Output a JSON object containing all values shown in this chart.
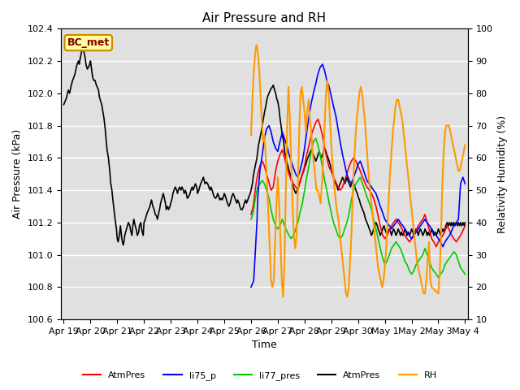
{
  "title": "Air Pressure and RH",
  "xlabel": "Time",
  "ylabel_left": "Air Pressure (kPa)",
  "ylabel_right": "Relativity Humidity (%)",
  "ylim_left": [
    100.6,
    102.4
  ],
  "ylim_right": [
    10,
    100
  ],
  "yticks_left": [
    100.6,
    100.8,
    101.0,
    101.2,
    101.4,
    101.6,
    101.8,
    102.0,
    102.2,
    102.4
  ],
  "yticks_right": [
    10,
    20,
    30,
    40,
    50,
    60,
    70,
    80,
    90,
    100
  ],
  "plot_bg_color": "#e0e0e0",
  "grid_color": "#ffffff",
  "annotation_text": "BC_met",
  "annotation_bg": "#ffffa0",
  "annotation_border": "#cc8800",
  "annotation_text_color": "#880000",
  "legend_items": [
    {
      "label": "AtmPres",
      "color": "#ff0000",
      "lw": 1.5
    },
    {
      "label": "li75_p",
      "color": "#0000ff",
      "lw": 1.5
    },
    {
      "label": "li77_pres",
      "color": "#00cc00",
      "lw": 1.5
    },
    {
      "label": "AtmPres",
      "color": "#000000",
      "lw": 1.5
    },
    {
      "label": "RH",
      "color": "#ff9900",
      "lw": 1.5
    }
  ],
  "xtick_labels": [
    "Apr 19",
    "Apr 20",
    "Apr 21",
    "Apr 22",
    "Apr 23",
    "Apr 24",
    "Apr 25",
    "Apr 26",
    "Apr 27",
    "Apr 28",
    "Apr 29",
    "Apr 30",
    "May 1",
    "May 2",
    "May 3",
    "May 4"
  ],
  "xtick_positions": [
    0,
    1,
    2,
    3,
    4,
    5,
    6,
    7,
    8,
    9,
    10,
    11,
    12,
    13,
    14,
    15
  ],
  "xlim": [
    -0.1,
    15.1
  ],
  "black_line": [
    0.0,
    101.93,
    0.05,
    101.95,
    0.1,
    101.97,
    0.17,
    102.02,
    0.22,
    102.0,
    0.28,
    102.05,
    0.33,
    102.08,
    0.38,
    102.1,
    0.42,
    102.12,
    0.47,
    102.16,
    0.5,
    102.18,
    0.55,
    102.2,
    0.58,
    102.18,
    0.62,
    102.22,
    0.67,
    102.26,
    0.72,
    102.28,
    0.75,
    102.26,
    0.8,
    102.22,
    0.83,
    102.18,
    0.88,
    102.15,
    0.92,
    102.16,
    0.97,
    102.18,
    1.0,
    102.2,
    1.05,
    102.14,
    1.08,
    102.1,
    1.12,
    102.08,
    1.17,
    102.08,
    1.22,
    102.05,
    1.25,
    102.04,
    1.3,
    102.02,
    1.33,
    101.98,
    1.38,
    101.95,
    1.42,
    101.93,
    1.47,
    101.88,
    1.5,
    101.85,
    1.55,
    101.78,
    1.58,
    101.72,
    1.62,
    101.65,
    1.67,
    101.6,
    1.72,
    101.52,
    1.75,
    101.45,
    1.8,
    101.4,
    1.83,
    101.35,
    1.88,
    101.28,
    1.92,
    101.22,
    1.97,
    101.16,
    2.0,
    101.1,
    2.03,
    101.08,
    2.08,
    101.12,
    2.12,
    101.18,
    2.17,
    101.1,
    2.22,
    101.06,
    2.25,
    101.08,
    2.28,
    101.12,
    2.33,
    101.15,
    2.38,
    101.18,
    2.42,
    101.2,
    2.47,
    101.18,
    2.5,
    101.15,
    2.55,
    101.12,
    2.58,
    101.18,
    2.62,
    101.22,
    2.67,
    101.18,
    2.72,
    101.15,
    2.75,
    101.12,
    2.8,
    101.14,
    2.83,
    101.18,
    2.88,
    101.2,
    2.92,
    101.15,
    2.97,
    101.12,
    3.0,
    101.2,
    3.05,
    101.22,
    3.08,
    101.24,
    3.12,
    101.26,
    3.17,
    101.28,
    3.22,
    101.3,
    3.25,
    101.32,
    3.28,
    101.34,
    3.33,
    101.3,
    3.38,
    101.28,
    3.42,
    101.25,
    3.47,
    101.24,
    3.5,
    101.22,
    3.55,
    101.26,
    3.58,
    101.28,
    3.62,
    101.32,
    3.67,
    101.35,
    3.72,
    101.38,
    3.75,
    101.36,
    3.8,
    101.32,
    3.83,
    101.28,
    3.88,
    101.3,
    3.92,
    101.28,
    3.97,
    101.3,
    4.0,
    101.32,
    4.05,
    101.35,
    4.08,
    101.38,
    4.12,
    101.4,
    4.17,
    101.42,
    4.22,
    101.4,
    4.25,
    101.38,
    4.28,
    101.4,
    4.33,
    101.42,
    4.38,
    101.4,
    4.42,
    101.42,
    4.47,
    101.4,
    4.5,
    101.38,
    4.55,
    101.4,
    4.58,
    101.38,
    4.62,
    101.35,
    4.67,
    101.36,
    4.72,
    101.38,
    4.75,
    101.4,
    4.8,
    101.42,
    4.83,
    101.4,
    4.88,
    101.42,
    4.92,
    101.44,
    4.97,
    101.42,
    5.0,
    101.38,
    5.05,
    101.4,
    5.08,
    101.42,
    5.12,
    101.44,
    5.17,
    101.46,
    5.22,
    101.48,
    5.25,
    101.46,
    5.28,
    101.44,
    5.33,
    101.45,
    5.38,
    101.44,
    5.42,
    101.42,
    5.47,
    101.4,
    5.5,
    101.42,
    5.55,
    101.4,
    5.58,
    101.38,
    5.62,
    101.36,
    5.67,
    101.35,
    5.72,
    101.36,
    5.75,
    101.38,
    5.8,
    101.36,
    5.83,
    101.34,
    5.88,
    101.35,
    5.92,
    101.34,
    5.97,
    101.36,
    6.0,
    101.38,
    6.05,
    101.36,
    6.08,
    101.34,
    6.12,
    101.32,
    6.17,
    101.3,
    6.22,
    101.32,
    6.25,
    101.34,
    6.28,
    101.36,
    6.33,
    101.38,
    6.38,
    101.36,
    6.42,
    101.34,
    6.47,
    101.32,
    6.5,
    101.34,
    6.55,
    101.32,
    6.58,
    101.3,
    6.62,
    101.28,
    6.67,
    101.28,
    6.72,
    101.3,
    6.75,
    101.32,
    6.8,
    101.34,
    6.83,
    101.32,
    6.88,
    101.34,
    6.92,
    101.36,
    6.97,
    101.38,
    7.0,
    101.4,
    7.05,
    101.44,
    7.08,
    101.48,
    7.12,
    101.52,
    7.17,
    101.56,
    7.22,
    101.6,
    7.25,
    101.64,
    7.28,
    101.68,
    7.33,
    101.72,
    7.38,
    101.76,
    7.42,
    101.8,
    7.47,
    101.85,
    7.5,
    101.88,
    7.55,
    101.92,
    7.58,
    101.95,
    7.62,
    101.98,
    7.67,
    102.0,
    7.72,
    102.02,
    7.75,
    102.03,
    7.8,
    102.04,
    7.83,
    102.05,
    7.88,
    102.02,
    7.92,
    102.0,
    7.97,
    101.96,
    8.0,
    101.95,
    8.05,
    101.9,
    8.08,
    101.85,
    8.12,
    101.8,
    8.17,
    101.74,
    8.22,
    101.7,
    8.25,
    101.65,
    8.28,
    101.62,
    8.33,
    101.58,
    8.38,
    101.55,
    8.42,
    101.52,
    8.47,
    101.5,
    8.5,
    101.48,
    8.55,
    101.45,
    8.58,
    101.42,
    8.62,
    101.4,
    8.67,
    101.38,
    8.72,
    101.4,
    8.75,
    101.42,
    8.8,
    101.44,
    8.83,
    101.45,
    8.88,
    101.48,
    8.92,
    101.5,
    8.97,
    101.52,
    9.0,
    101.54,
    9.05,
    101.56,
    9.08,
    101.58,
    9.12,
    101.6,
    9.17,
    101.62,
    9.22,
    101.64,
    9.25,
    101.65,
    9.28,
    101.64,
    9.33,
    101.62,
    9.38,
    101.6,
    9.42,
    101.58,
    9.47,
    101.6,
    9.5,
    101.62,
    9.55,
    101.64,
    9.58,
    101.62,
    9.62,
    101.6,
    9.67,
    101.62,
    9.72,
    101.65,
    9.75,
    101.66,
    9.8,
    101.64,
    9.83,
    101.62,
    9.88,
    101.6,
    9.92,
    101.58,
    9.97,
    101.55,
    10.0,
    101.52,
    10.05,
    101.5,
    10.08,
    101.48,
    10.12,
    101.46,
    10.17,
    101.44,
    10.22,
    101.42,
    10.25,
    101.4,
    10.28,
    101.42,
    10.33,
    101.44,
    10.38,
    101.46,
    10.42,
    101.48,
    10.47,
    101.46,
    10.5,
    101.44,
    10.55,
    101.46,
    10.58,
    101.48,
    10.62,
    101.46,
    10.67,
    101.44,
    10.72,
    101.42,
    10.75,
    101.44,
    10.8,
    101.46,
    10.83,
    101.44,
    10.88,
    101.42,
    10.92,
    101.4,
    10.97,
    101.38,
    11.0,
    101.36,
    11.05,
    101.34,
    11.08,
    101.32,
    11.12,
    101.3,
    11.17,
    101.28,
    11.22,
    101.26,
    11.25,
    101.24,
    11.28,
    101.22,
    11.33,
    101.2,
    11.38,
    101.18,
    11.42,
    101.16,
    11.47,
    101.14,
    11.5,
    101.12,
    11.55,
    101.14,
    11.58,
    101.16,
    11.62,
    101.18,
    11.67,
    101.2,
    11.72,
    101.18,
    11.75,
    101.16,
    11.8,
    101.14,
    11.83,
    101.12,
    11.88,
    101.14,
    11.92,
    101.16,
    11.97,
    101.18,
    12.0,
    101.16,
    12.05,
    101.14,
    12.08,
    101.12,
    12.12,
    101.14,
    12.17,
    101.16,
    12.22,
    101.14,
    12.25,
    101.12,
    12.28,
    101.14,
    12.33,
    101.16,
    12.38,
    101.14,
    12.42,
    101.12,
    12.47,
    101.14,
    12.5,
    101.16,
    12.55,
    101.14,
    12.58,
    101.12,
    12.62,
    101.14,
    12.67,
    101.12,
    12.72,
    101.14,
    12.75,
    101.16,
    12.8,
    101.14,
    12.83,
    101.12,
    12.88,
    101.14,
    12.92,
    101.12,
    12.97,
    101.14,
    13.0,
    101.16,
    13.05,
    101.14,
    13.08,
    101.12,
    13.12,
    101.14,
    13.17,
    101.16,
    13.22,
    101.14,
    13.25,
    101.12,
    13.28,
    101.14,
    13.33,
    101.16,
    13.38,
    101.14,
    13.42,
    101.12,
    13.47,
    101.14,
    13.5,
    101.16,
    13.55,
    101.14,
    13.58,
    101.12,
    13.62,
    101.14,
    13.67,
    101.12,
    13.72,
    101.14,
    13.75,
    101.16,
    13.8,
    101.14,
    13.83,
    101.12,
    13.88,
    101.14,
    13.92,
    101.12,
    13.97,
    101.14,
    14.0,
    101.16,
    14.05,
    101.14,
    14.08,
    101.12,
    14.12,
    101.14,
    14.17,
    101.16,
    14.22,
    101.14,
    14.25,
    101.16,
    14.28,
    101.18,
    14.33,
    101.2,
    14.38,
    101.18,
    14.42,
    101.2,
    14.47,
    101.18,
    14.5,
    101.2,
    14.55,
    101.18,
    14.58,
    101.2,
    14.62,
    101.18,
    14.67,
    101.2,
    14.72,
    101.18,
    14.75,
    101.2,
    14.8,
    101.18,
    14.83,
    101.2,
    14.88,
    101.18,
    14.92,
    101.2,
    14.97,
    101.18,
    15.0,
    101.2
  ],
  "red_line": [
    7.0,
    101.25,
    7.08,
    101.3,
    7.17,
    101.42,
    7.25,
    101.5,
    7.33,
    101.55,
    7.42,
    101.58,
    7.5,
    101.55,
    7.58,
    101.5,
    7.67,
    101.45,
    7.75,
    101.4,
    7.83,
    101.42,
    7.92,
    101.52,
    8.0,
    101.58,
    8.08,
    101.62,
    8.17,
    101.65,
    8.25,
    101.6,
    8.33,
    101.55,
    8.42,
    101.5,
    8.5,
    101.46,
    8.58,
    101.44,
    8.67,
    101.42,
    8.75,
    101.4,
    8.83,
    101.45,
    8.92,
    101.5,
    9.0,
    101.55,
    9.08,
    101.62,
    9.17,
    101.68,
    9.25,
    101.74,
    9.33,
    101.78,
    9.42,
    101.82,
    9.5,
    101.84,
    9.58,
    101.8,
    9.67,
    101.74,
    9.75,
    101.66,
    9.83,
    101.6,
    9.92,
    101.54,
    10.0,
    101.52,
    10.08,
    101.48,
    10.17,
    101.45,
    10.25,
    101.42,
    10.33,
    101.4,
    10.42,
    101.42,
    10.5,
    101.46,
    10.58,
    101.5,
    10.67,
    101.55,
    10.75,
    101.58,
    10.83,
    101.6,
    10.92,
    101.58,
    11.0,
    101.55,
    11.08,
    101.52,
    11.17,
    101.48,
    11.25,
    101.45,
    11.33,
    101.42,
    11.42,
    101.4,
    11.5,
    101.38,
    11.58,
    101.35,
    11.67,
    101.3,
    11.75,
    101.24,
    11.83,
    101.18,
    11.92,
    101.12,
    12.0,
    101.1,
    12.08,
    101.12,
    12.17,
    101.15,
    12.25,
    101.18,
    12.33,
    101.2,
    12.42,
    101.22,
    12.5,
    101.2,
    12.58,
    101.18,
    12.67,
    101.15,
    12.75,
    101.12,
    12.83,
    101.1,
    12.92,
    101.08,
    13.0,
    101.1,
    13.08,
    101.12,
    13.17,
    101.15,
    13.25,
    101.18,
    13.33,
    101.2,
    13.42,
    101.22,
    13.5,
    101.25,
    13.58,
    101.2,
    13.67,
    101.15,
    13.75,
    101.1,
    13.83,
    101.08,
    13.92,
    101.05,
    14.0,
    101.08,
    14.08,
    101.1,
    14.17,
    101.12,
    14.25,
    101.15,
    14.33,
    101.18,
    14.42,
    101.15,
    14.5,
    101.12,
    14.58,
    101.1,
    14.67,
    101.08,
    14.75,
    101.1,
    14.83,
    101.12,
    14.92,
    101.15,
    15.0,
    101.18
  ],
  "blue_line": [
    7.0,
    100.8,
    7.05,
    100.82,
    7.1,
    100.84,
    7.17,
    101.05,
    7.22,
    101.2,
    7.25,
    101.35,
    7.33,
    101.52,
    7.42,
    101.62,
    7.5,
    101.72,
    7.58,
    101.78,
    7.67,
    101.8,
    7.75,
    101.76,
    7.83,
    101.7,
    7.92,
    101.66,
    8.0,
    101.64,
    8.08,
    101.7,
    8.17,
    101.76,
    8.25,
    101.72,
    8.33,
    101.68,
    8.42,
    101.62,
    8.5,
    101.58,
    8.58,
    101.54,
    8.67,
    101.5,
    8.75,
    101.48,
    8.83,
    101.52,
    8.92,
    101.58,
    9.0,
    101.66,
    9.08,
    101.76,
    9.17,
    101.86,
    9.25,
    101.94,
    9.33,
    102.0,
    9.42,
    102.06,
    9.5,
    102.12,
    9.58,
    102.16,
    9.67,
    102.18,
    9.75,
    102.14,
    9.83,
    102.08,
    9.92,
    102.04,
    10.0,
    101.98,
    10.08,
    101.92,
    10.17,
    101.86,
    10.25,
    101.78,
    10.33,
    101.7,
    10.42,
    101.62,
    10.5,
    101.56,
    10.58,
    101.5,
    10.67,
    101.46,
    10.75,
    101.44,
    10.83,
    101.48,
    10.92,
    101.52,
    11.0,
    101.56,
    11.08,
    101.58,
    11.17,
    101.54,
    11.25,
    101.5,
    11.33,
    101.46,
    11.42,
    101.44,
    11.5,
    101.42,
    11.58,
    101.4,
    11.67,
    101.38,
    11.75,
    101.34,
    11.83,
    101.3,
    11.92,
    101.26,
    12.0,
    101.22,
    12.08,
    101.2,
    12.17,
    101.18,
    12.25,
    101.16,
    12.33,
    101.18,
    12.42,
    101.2,
    12.5,
    101.22,
    12.58,
    101.2,
    12.67,
    101.18,
    12.75,
    101.16,
    12.83,
    101.14,
    12.92,
    101.12,
    13.0,
    101.1,
    13.08,
    101.12,
    13.17,
    101.14,
    13.25,
    101.16,
    13.33,
    101.18,
    13.42,
    101.2,
    13.5,
    101.22,
    13.58,
    101.2,
    13.67,
    101.18,
    13.75,
    101.16,
    13.83,
    101.14,
    13.92,
    101.12,
    14.0,
    101.1,
    14.08,
    101.08,
    14.17,
    101.05,
    14.25,
    101.08,
    14.33,
    101.1,
    14.42,
    101.12,
    14.5,
    101.15,
    14.58,
    101.18,
    14.67,
    101.2,
    14.75,
    101.22,
    14.83,
    101.44,
    14.92,
    101.48,
    15.0,
    101.44
  ],
  "green_line": [
    7.0,
    101.22,
    7.08,
    101.26,
    7.17,
    101.36,
    7.25,
    101.42,
    7.33,
    101.44,
    7.42,
    101.46,
    7.5,
    101.44,
    7.58,
    101.4,
    7.67,
    101.35,
    7.75,
    101.28,
    7.83,
    101.22,
    7.92,
    101.18,
    8.0,
    101.16,
    8.08,
    101.18,
    8.17,
    101.22,
    8.25,
    101.18,
    8.33,
    101.15,
    8.42,
    101.12,
    8.5,
    101.1,
    8.58,
    101.12,
    8.67,
    101.16,
    8.75,
    101.2,
    8.83,
    101.26,
    8.92,
    101.32,
    9.0,
    101.4,
    9.08,
    101.48,
    9.17,
    101.56,
    9.25,
    101.64,
    9.33,
    101.7,
    9.42,
    101.72,
    9.5,
    101.68,
    9.58,
    101.62,
    9.67,
    101.54,
    9.75,
    101.46,
    9.83,
    101.4,
    9.92,
    101.32,
    10.0,
    101.26,
    10.08,
    101.2,
    10.17,
    101.16,
    10.25,
    101.12,
    10.33,
    101.1,
    10.42,
    101.12,
    10.5,
    101.16,
    10.58,
    101.2,
    10.67,
    101.26,
    10.75,
    101.34,
    10.83,
    101.4,
    10.92,
    101.44,
    11.0,
    101.46,
    11.08,
    101.48,
    11.17,
    101.44,
    11.25,
    101.4,
    11.33,
    101.36,
    11.42,
    101.32,
    11.5,
    101.28,
    11.58,
    101.22,
    11.67,
    101.16,
    11.75,
    101.1,
    11.83,
    101.04,
    11.92,
    100.98,
    12.0,
    100.94,
    12.08,
    100.96,
    12.17,
    101.0,
    12.25,
    101.04,
    12.33,
    101.06,
    12.42,
    101.08,
    12.5,
    101.06,
    12.58,
    101.04,
    12.67,
    101.0,
    12.75,
    100.96,
    12.83,
    100.94,
    12.92,
    100.9,
    13.0,
    100.88,
    13.08,
    100.9,
    13.17,
    100.94,
    13.25,
    100.96,
    13.33,
    100.98,
    13.42,
    101.0,
    13.5,
    101.04,
    13.58,
    101.0,
    13.67,
    100.96,
    13.75,
    100.92,
    13.83,
    100.9,
    13.92,
    100.88,
    14.0,
    100.86,
    14.08,
    100.88,
    14.17,
    100.9,
    14.25,
    100.94,
    14.33,
    100.96,
    14.42,
    100.98,
    14.5,
    101.0,
    14.58,
    101.02,
    14.67,
    101.0,
    14.75,
    100.96,
    14.83,
    100.92,
    14.92,
    100.9,
    15.0,
    100.88
  ],
  "orange_rh": [
    7.0,
    67,
    7.05,
    78,
    7.1,
    86,
    7.15,
    92,
    7.2,
    95,
    7.25,
    93,
    7.3,
    88,
    7.35,
    80,
    7.4,
    72,
    7.45,
    65,
    7.5,
    67,
    7.55,
    60,
    7.6,
    52,
    7.65,
    42,
    7.7,
    32,
    7.75,
    22,
    7.8,
    20,
    7.85,
    22,
    7.9,
    34,
    7.95,
    46,
    8.0,
    54,
    8.05,
    46,
    8.1,
    34,
    8.15,
    22,
    8.2,
    17,
    8.25,
    28,
    8.3,
    50,
    8.35,
    70,
    8.4,
    82,
    8.45,
    72,
    8.5,
    58,
    8.55,
    46,
    8.6,
    36,
    8.65,
    32,
    8.7,
    36,
    8.75,
    50,
    8.8,
    68,
    8.85,
    80,
    8.9,
    82,
    8.95,
    78,
    9.0,
    74,
    9.05,
    68,
    9.1,
    74,
    9.15,
    78,
    9.2,
    72,
    9.25,
    68,
    9.3,
    62,
    9.35,
    58,
    9.4,
    54,
    9.45,
    50,
    9.5,
    50,
    9.55,
    48,
    9.6,
    46,
    9.65,
    52,
    9.7,
    60,
    9.75,
    70,
    9.8,
    80,
    9.85,
    84,
    9.9,
    80,
    9.95,
    72,
    10.0,
    64,
    10.05,
    58,
    10.1,
    52,
    10.15,
    48,
    10.2,
    44,
    10.25,
    42,
    10.3,
    38,
    10.35,
    34,
    10.4,
    30,
    10.45,
    26,
    10.5,
    22,
    10.55,
    18,
    10.6,
    17,
    10.65,
    20,
    10.7,
    28,
    10.75,
    36,
    10.8,
    48,
    10.85,
    58,
    10.9,
    66,
    10.95,
    72,
    11.0,
    76,
    11.05,
    80,
    11.1,
    82,
    11.15,
    80,
    11.2,
    76,
    11.25,
    72,
    11.3,
    66,
    11.35,
    60,
    11.4,
    54,
    11.45,
    50,
    11.5,
    46,
    11.55,
    42,
    11.6,
    38,
    11.65,
    34,
    11.7,
    30,
    11.75,
    26,
    11.8,
    24,
    11.85,
    22,
    11.9,
    20,
    11.95,
    22,
    12.0,
    26,
    12.05,
    32,
    12.1,
    40,
    12.15,
    48,
    12.2,
    56,
    12.25,
    62,
    12.3,
    68,
    12.35,
    72,
    12.4,
    76,
    12.45,
    78,
    12.5,
    78,
    12.55,
    76,
    12.6,
    74,
    12.65,
    72,
    12.7,
    68,
    12.75,
    64,
    12.8,
    60,
    12.85,
    56,
    12.9,
    52,
    12.95,
    48,
    13.0,
    44,
    13.05,
    40,
    13.1,
    36,
    13.15,
    32,
    13.2,
    28,
    13.25,
    26,
    13.3,
    24,
    13.35,
    22,
    13.4,
    20,
    13.45,
    18,
    13.5,
    18,
    13.55,
    22,
    13.6,
    28,
    13.65,
    34,
    13.7,
    22,
    13.75,
    20,
    14.0,
    18,
    14.05,
    24,
    14.1,
    36,
    14.15,
    52,
    14.2,
    62,
    14.25,
    68,
    14.3,
    70,
    14.35,
    70,
    14.4,
    70,
    14.45,
    68,
    14.5,
    66,
    14.55,
    64,
    14.6,
    62,
    14.65,
    60,
    14.7,
    58,
    14.75,
    56,
    14.8,
    56,
    14.85,
    58,
    14.9,
    60,
    14.95,
    62,
    15.0,
    64
  ]
}
